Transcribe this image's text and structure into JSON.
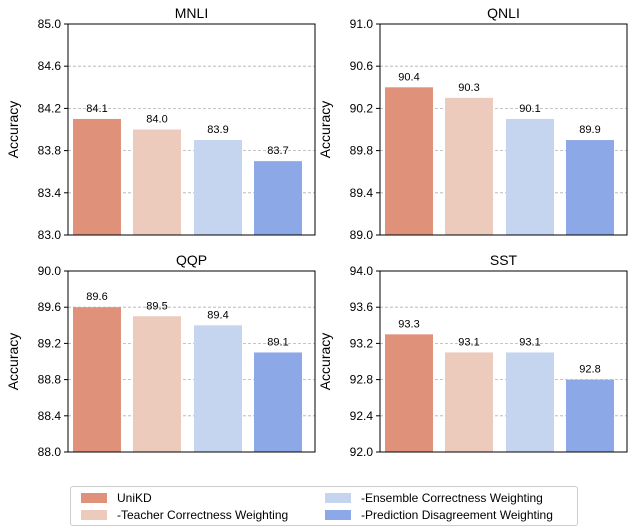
{
  "chart_data": [
    {
      "type": "bar",
      "title": "MNLI",
      "ylabel": "Accuracy",
      "xlabel": "",
      "ylim": [
        83.0,
        85.0
      ],
      "yticks": [
        "83.0",
        "83.4",
        "83.8",
        "84.2",
        "84.6",
        "85.0"
      ],
      "categories": [
        "UniKD",
        "-Teacher Correctness Weighting",
        "-Ensemble Correctness Weighting",
        "-Prediction Disagreement Weighting"
      ],
      "values": [
        84.1,
        84.0,
        83.9,
        83.7
      ],
      "value_labels": [
        "84.1",
        "84.0",
        "83.9",
        "83.7"
      ],
      "grid": "y-dashed"
    },
    {
      "type": "bar",
      "title": "QNLI",
      "ylabel": "Accuracy",
      "xlabel": "",
      "ylim": [
        89.0,
        91.0
      ],
      "yticks": [
        "89.0",
        "89.4",
        "89.8",
        "90.2",
        "90.6",
        "91.0"
      ],
      "categories": [
        "UniKD",
        "-Teacher Correctness Weighting",
        "-Ensemble Correctness Weighting",
        "-Prediction Disagreement Weighting"
      ],
      "values": [
        90.4,
        90.3,
        90.1,
        89.9
      ],
      "value_labels": [
        "90.4",
        "90.3",
        "90.1",
        "89.9"
      ],
      "grid": "y-dashed"
    },
    {
      "type": "bar",
      "title": "QQP",
      "ylabel": "Accuracy",
      "xlabel": "",
      "ylim": [
        88.0,
        90.0
      ],
      "yticks": [
        "88.0",
        "88.4",
        "88.8",
        "89.2",
        "89.6",
        "90.0"
      ],
      "categories": [
        "UniKD",
        "-Teacher Correctness Weighting",
        "-Ensemble Correctness Weighting",
        "-Prediction Disagreement Weighting"
      ],
      "values": [
        89.6,
        89.5,
        89.4,
        89.1
      ],
      "value_labels": [
        "89.6",
        "89.5",
        "89.4",
        "89.1"
      ],
      "grid": "y-dashed"
    },
    {
      "type": "bar",
      "title": "SST",
      "ylabel": "Accuracy",
      "xlabel": "",
      "ylim": [
        92.0,
        94.0
      ],
      "yticks": [
        "92.0",
        "92.4",
        "92.8",
        "93.2",
        "93.6",
        "94.0"
      ],
      "categories": [
        "UniKD",
        "-Teacher Correctness Weighting",
        "-Ensemble Correctness Weighting",
        "-Prediction Disagreement Weighting"
      ],
      "values": [
        93.3,
        93.1,
        93.1,
        92.8
      ],
      "value_labels": [
        "93.3",
        "93.1",
        "93.1",
        "92.8"
      ],
      "grid": "y-dashed"
    }
  ],
  "legend": {
    "placement": "bottom-center",
    "items": [
      {
        "label": "UniKD",
        "color": "#e0917a"
      },
      {
        "label": "-Teacher Correctness Weighting",
        "color": "#eccbbd"
      },
      {
        "label": "-Ensemble Correctness Weighting",
        "color": "#c5d4ef"
      },
      {
        "label": "-Prediction Disagreement Weighting",
        "color": "#8ca8e6"
      }
    ]
  },
  "colors": {
    "grid": "#b0b0b0",
    "axis": "#000000"
  }
}
